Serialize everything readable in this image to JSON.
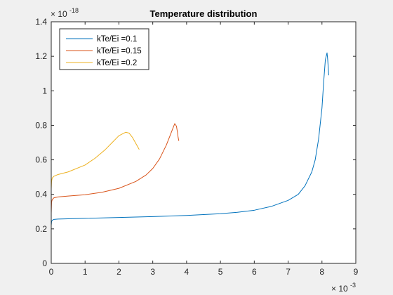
{
  "chart_data": {
    "type": "line",
    "title": "Temperature distribution",
    "xlabel": "",
    "ylabel": "",
    "xlim": [
      0,
      0.009
    ],
    "ylim": [
      0,
      1.4e-18
    ],
    "x_exponent_label": "× 10",
    "x_exponent": "-3",
    "y_exponent_label": "× 10",
    "y_exponent": "-18",
    "xticks": [
      "0",
      "1",
      "2",
      "3",
      "4",
      "5",
      "6",
      "7",
      "8",
      "9"
    ],
    "yticks": [
      "0",
      "0.2",
      "0.4",
      "0.6",
      "0.8",
      "1",
      "1.2",
      "1.4"
    ],
    "grid": false,
    "legend_position": "top-left",
    "series": [
      {
        "name": "kTe/Ei =0.1",
        "color": "#0072BD",
        "x": [
          0,
          1e-05,
          3e-05,
          8e-05,
          0.0002,
          0.001,
          0.002,
          0.003,
          0.004,
          0.005,
          0.0055,
          0.006,
          0.0065,
          0.007,
          0.0073,
          0.0075,
          0.0077,
          0.0078,
          0.0079,
          0.008,
          0.00805,
          0.0081,
          0.00815,
          0.00817,
          0.0082
        ],
        "y": [
          2.2e-19,
          2.42e-19,
          2.5e-19,
          2.55e-19,
          2.57e-19,
          2.61e-19,
          2.66e-19,
          2.71e-19,
          2.78e-19,
          2.88e-19,
          2.96e-19,
          3.08e-19,
          3.3e-19,
          3.65e-19,
          4e-19,
          4.5e-19,
          5.3e-19,
          6e-19,
          7.2e-19,
          9e-19,
          1.05e-18,
          1.18e-18,
          1.22e-18,
          1.18e-18,
          1.09e-18
        ]
      },
      {
        "name": "kTe/Ei =0.15",
        "color": "#D95319",
        "x": [
          0,
          1e-05,
          3e-05,
          8e-05,
          0.0002,
          0.0005,
          0.001,
          0.0015,
          0.002,
          0.0025,
          0.0028,
          0.003,
          0.0032,
          0.0034,
          0.0035,
          0.0036,
          0.00365,
          0.0037,
          0.00373,
          0.00375,
          0.00377
        ],
        "y": [
          2.9e-19,
          3.55e-19,
          3.7e-19,
          3.8e-19,
          3.85e-19,
          3.9e-19,
          3.98e-19,
          4.12e-19,
          4.35e-19,
          4.75e-19,
          5.12e-19,
          5.5e-19,
          6.05e-19,
          6.85e-19,
          7.35e-19,
          7.85e-19,
          8.1e-19,
          7.95e-19,
          7.6e-19,
          7.3e-19,
          7.1e-19
        ]
      },
      {
        "name": "kTe/Ei =0.2",
        "color": "#EDB120",
        "x": [
          0,
          1e-05,
          3e-05,
          8e-05,
          0.0002,
          0.0005,
          0.001,
          0.0013,
          0.0016,
          0.0018,
          0.002,
          0.0022,
          0.0023,
          0.0024,
          0.0025,
          0.0026
        ],
        "y": [
          4.3e-19,
          4.75e-19,
          4.95e-19,
          5.05e-19,
          5.15e-19,
          5.3e-19,
          5.7e-19,
          6.1e-19,
          6.6e-19,
          7e-19,
          7.4e-19,
          7.6e-19,
          7.55e-19,
          7.3e-19,
          6.95e-19,
          6.6e-19
        ]
      }
    ]
  }
}
